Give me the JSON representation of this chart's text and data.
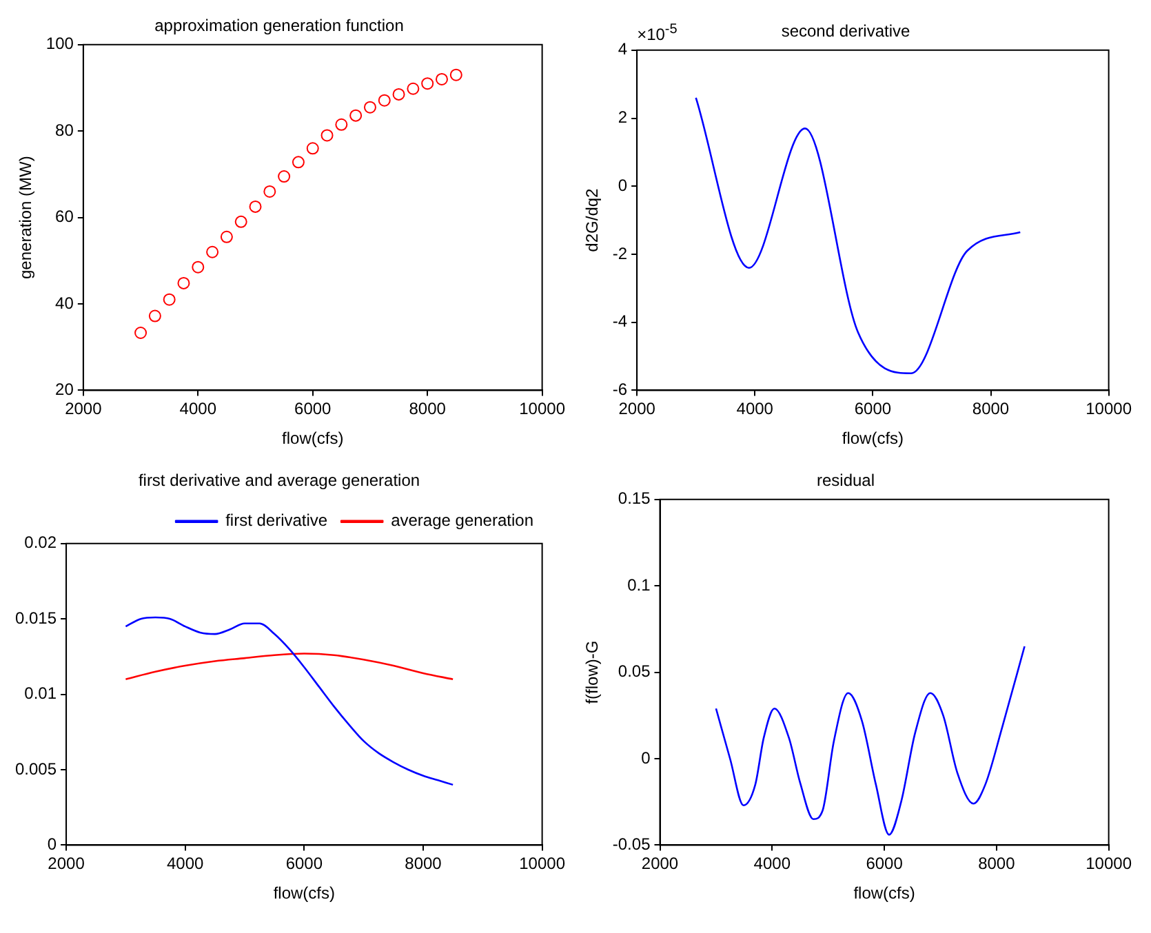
{
  "chart_data": [
    {
      "type": "scatter",
      "title": "approximation generation function",
      "xlabel": "flow(cfs)",
      "ylabel": "generation (MW)",
      "xlim": [
        2000,
        10000
      ],
      "xticks": [
        2000,
        4000,
        6000,
        8000,
        10000
      ],
      "ylim": [
        20,
        100
      ],
      "yticks": [
        20,
        40,
        60,
        80,
        100
      ],
      "grid": false,
      "legend": false,
      "marker": "circle",
      "series": [
        {
          "color": "#ff0000",
          "x": [
            3000,
            3250,
            3500,
            3750,
            4000,
            4250,
            4500,
            4750,
            5000,
            5250,
            5500,
            5750,
            6000,
            6250,
            6500,
            6750,
            7000,
            7250,
            7500,
            7750,
            8000,
            8250,
            8500
          ],
          "values": [
            33.3,
            37.2,
            41,
            44.8,
            48.5,
            52,
            55.5,
            59,
            62.5,
            66,
            69.5,
            72.8,
            76,
            79,
            81.5,
            83.6,
            85.5,
            87.1,
            88.5,
            89.8,
            91,
            92,
            93
          ]
        }
      ]
    },
    {
      "type": "line",
      "title": "second derivative",
      "xlabel": "flow(cfs)",
      "ylabel": "d2G/dq2",
      "xlim": [
        2000,
        10000
      ],
      "xticks": [
        2000,
        4000,
        6000,
        8000,
        10000
      ],
      "ylim": [
        -6,
        4
      ],
      "yticks": [
        -6,
        -4,
        -2,
        0,
        2,
        4
      ],
      "grid": false,
      "legend": false,
      "marker": "none",
      "line_style": "solid",
      "annotations": [
        "×10$^{-5}$"
      ],
      "series": [
        {
          "color": "#0000ff",
          "x": [
            3000,
            3900,
            4850,
            5750,
            6650,
            7600,
            8500
          ],
          "values": [
            2.6,
            -2.4,
            1.7,
            -4.3,
            -5.5,
            -1.9,
            -1.35
          ]
        }
      ]
    },
    {
      "type": "line",
      "title": "first derivative and average generation",
      "xlabel": "flow(cfs)",
      "xlim": [
        2000,
        10000
      ],
      "xticks": [
        2000,
        4000,
        6000,
        8000,
        10000
      ],
      "ylim": [
        0,
        0.02
      ],
      "yticks": [
        0,
        0.005,
        0.01,
        0.015,
        0.02
      ],
      "grid": false,
      "legend": "top right",
      "marker": "none",
      "line_style": "solid",
      "series": [
        {
          "name": "first derivative",
          "color": "#0000ff",
          "x": [
            3000,
            3250,
            3500,
            3750,
            4000,
            4250,
            4500,
            4750,
            5000,
            5250,
            5500,
            5750,
            6000,
            6250,
            6500,
            6750,
            7000,
            7250,
            7500,
            7750,
            8000,
            8250,
            8500
          ],
          "values": [
            0.0145,
            0.015,
            0.0151,
            0.015,
            0.0145,
            0.0141,
            0.014,
            0.0143,
            0.0147,
            0.0147,
            0.014,
            0.013,
            0.0118,
            0.0105,
            0.0092,
            0.008,
            0.0069,
            0.0061,
            0.0055,
            0.005,
            0.0046,
            0.0043,
            0.004
          ]
        },
        {
          "name": "average generation",
          "color": "#ff0000",
          "x": [
            3000,
            3500,
            4000,
            4500,
            5000,
            5500,
            6000,
            6500,
            7000,
            7500,
            8000,
            8500
          ],
          "values": [
            0.011,
            0.0115,
            0.0119,
            0.0122,
            0.0124,
            0.0126,
            0.0127,
            0.0126,
            0.0123,
            0.0119,
            0.0114,
            0.011
          ]
        }
      ]
    },
    {
      "type": "line",
      "title": "residual",
      "xlabel": "flow(cfs)",
      "ylabel": "f(flow)-G",
      "xlim": [
        2000,
        10000
      ],
      "xticks": [
        2000,
        4000,
        6000,
        8000,
        10000
      ],
      "ylim": [
        -0.05,
        0.15
      ],
      "yticks": [
        -0.05,
        0,
        0.05,
        0.1,
        0.15
      ],
      "grid": false,
      "legend": false,
      "marker": "none",
      "line_style": "solid",
      "series": [
        {
          "color": "#0000ff",
          "x": [
            3000,
            3250,
            3490,
            3700,
            3850,
            4040,
            4300,
            4500,
            4735,
            4900,
            5100,
            5355,
            5600,
            5850,
            6085,
            6300,
            6550,
            6820,
            7050,
            7300,
            7590,
            7800,
            8100,
            8500
          ],
          "values": [
            0.029,
            0.0,
            -0.027,
            -0.015,
            0.012,
            0.029,
            0.012,
            -0.014,
            -0.035,
            -0.03,
            0.01,
            0.038,
            0.022,
            -0.015,
            -0.044,
            -0.025,
            0.015,
            0.038,
            0.025,
            -0.008,
            -0.026,
            -0.015,
            0.018,
            0.065
          ]
        }
      ]
    }
  ]
}
